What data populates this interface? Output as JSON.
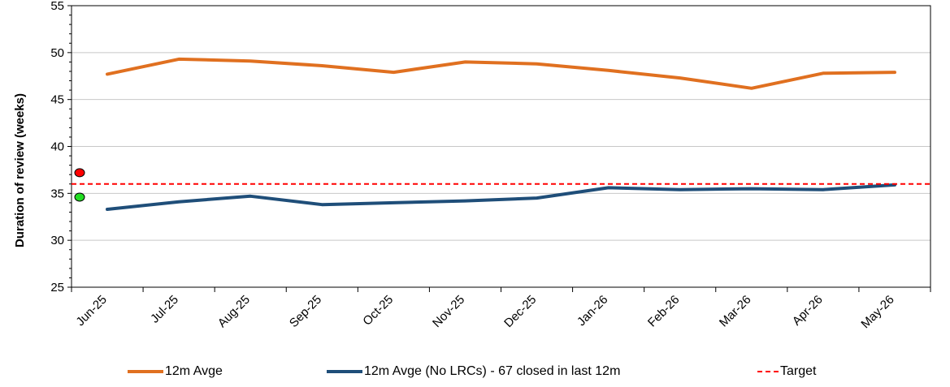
{
  "chart_data": {
    "type": "line",
    "title": "",
    "xlabel": "",
    "ylabel": "Duration of review (weeks)",
    "ylim": [
      25,
      55
    ],
    "yticks": [
      25,
      30,
      35,
      40,
      45,
      50,
      55
    ],
    "grid": true,
    "legend_position": "bottom",
    "categories": [
      "Jun-25",
      "Jul-25",
      "Aug-25",
      "Sep-25",
      "Oct-25",
      "Nov-25",
      "Dec-25",
      "Jan-26",
      "Feb-26",
      "Mar-26",
      "Apr-26",
      "May-26"
    ],
    "series": [
      {
        "name": "12m Avge",
        "color": "#e07020",
        "style": "solid",
        "values": [
          47.7,
          49.3,
          49.1,
          48.6,
          47.9,
          49.0,
          48.8,
          48.1,
          47.3,
          46.2,
          47.8,
          47.9
        ]
      },
      {
        "name": "12m Avge (No LRCs) - 67 closed in last 12m",
        "color": "#1f4e79",
        "style": "solid",
        "values": [
          33.3,
          34.1,
          34.7,
          33.8,
          34.0,
          34.2,
          34.5,
          35.6,
          35.4,
          35.5,
          35.4,
          35.9
        ]
      },
      {
        "name": "Target",
        "color": "#ff0000",
        "style": "dashed",
        "constant": 36
      }
    ],
    "markers": [
      {
        "color": "#ff0000",
        "value": 37.2
      },
      {
        "color": "#22dd22",
        "value": 34.6
      }
    ]
  }
}
